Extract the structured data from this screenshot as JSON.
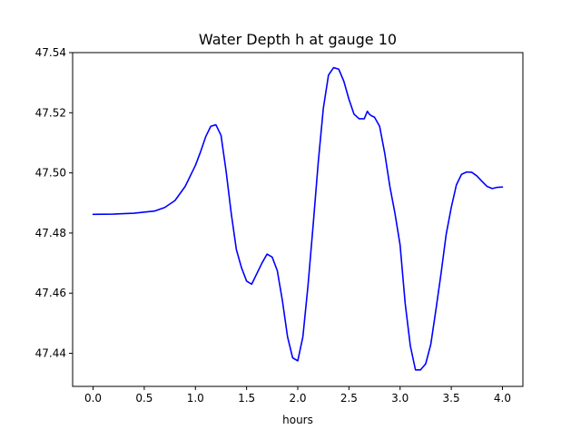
{
  "chart_data": {
    "type": "line",
    "title": "Water Depth h at gauge 10",
    "xlabel": "hours",
    "ylabel": "",
    "xlim": [
      -0.2,
      4.2
    ],
    "ylim": [
      47.429,
      47.54
    ],
    "xticks": [
      0.0,
      0.5,
      1.0,
      1.5,
      2.0,
      2.5,
      3.0,
      3.5,
      4.0
    ],
    "xtick_labels": [
      "0.0",
      "0.5",
      "1.0",
      "1.5",
      "2.0",
      "2.5",
      "3.0",
      "3.5",
      "4.0"
    ],
    "yticks": [
      47.44,
      47.46,
      47.48,
      47.5,
      47.52,
      47.54
    ],
    "ytick_labels": [
      "47.44",
      "47.46",
      "47.48",
      "47.50",
      "47.52",
      "47.54"
    ],
    "grid": false,
    "legend": "none",
    "series": [
      {
        "color": "#0000ff",
        "x": [
          0.0,
          0.2,
          0.4,
          0.6,
          0.7,
          0.8,
          0.9,
          1.0,
          1.05,
          1.1,
          1.15,
          1.2,
          1.25,
          1.3,
          1.35,
          1.4,
          1.45,
          1.5,
          1.55,
          1.6,
          1.65,
          1.7,
          1.75,
          1.8,
          1.85,
          1.9,
          1.95,
          2.0,
          2.05,
          2.1,
          2.15,
          2.2,
          2.25,
          2.3,
          2.35,
          2.4,
          2.45,
          2.5,
          2.55,
          2.6,
          2.65,
          2.68,
          2.7,
          2.72,
          2.75,
          2.8,
          2.85,
          2.9,
          2.95,
          3.0,
          3.05,
          3.1,
          3.15,
          3.2,
          3.25,
          3.3,
          3.35,
          3.4,
          3.45,
          3.5,
          3.55,
          3.6,
          3.65,
          3.7,
          3.75,
          3.8,
          3.85,
          3.9,
          3.95,
          4.0
        ],
        "y": [
          47.4862,
          47.4863,
          47.4866,
          47.4873,
          47.4885,
          47.4908,
          47.4955,
          47.5025,
          47.507,
          47.512,
          47.5155,
          47.516,
          47.5125,
          47.5005,
          47.4865,
          47.4745,
          47.4685,
          47.464,
          47.463,
          47.4665,
          47.47,
          47.473,
          47.472,
          47.4675,
          47.4575,
          47.4455,
          47.4385,
          47.4375,
          47.4455,
          47.4625,
          47.4825,
          47.5035,
          47.5215,
          47.5325,
          47.535,
          47.5345,
          47.5305,
          47.5245,
          47.5195,
          47.518,
          47.518,
          47.5205,
          47.5195,
          47.519,
          47.5185,
          47.5155,
          47.5065,
          47.4955,
          47.4865,
          47.476,
          47.4565,
          47.4425,
          47.4345,
          47.4345,
          47.4365,
          47.443,
          47.4545,
          47.4665,
          47.4795,
          47.4885,
          47.496,
          47.4995,
          47.5003,
          47.5002,
          47.499,
          47.4972,
          47.4955,
          47.4948,
          47.4952,
          47.4953
        ]
      }
    ]
  }
}
